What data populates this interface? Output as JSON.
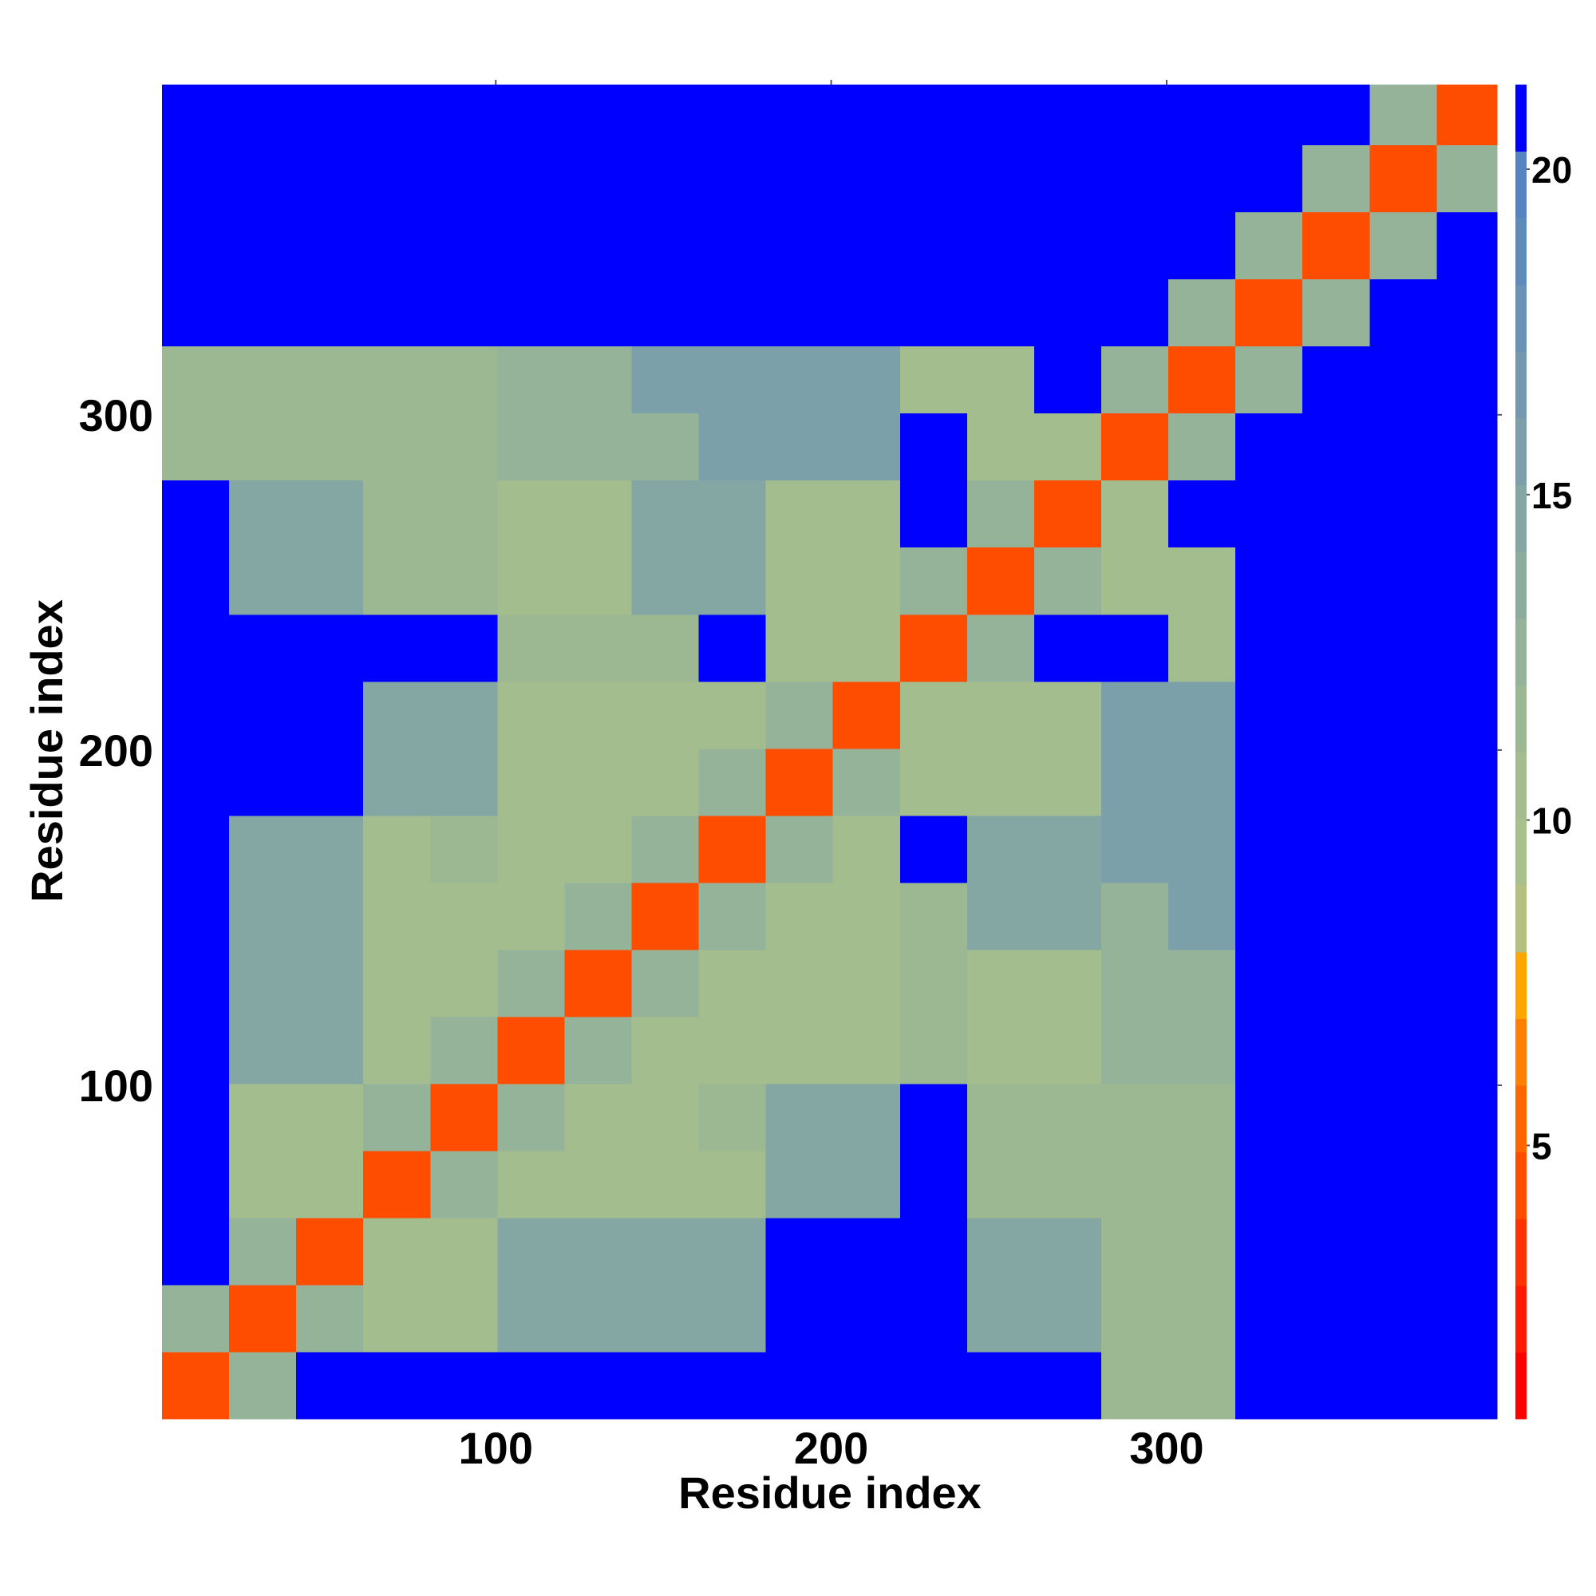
{
  "chart_data": {
    "type": "heatmap",
    "xlabel": "Residue index",
    "ylabel": "Residue index",
    "xbins": [
      0.5,
      20.5,
      40.5,
      60.5,
      80.5,
      100.5,
      120.5,
      140.5,
      160.5,
      180.5,
      200.5,
      220.5,
      240.5,
      260.5,
      280.5,
      300.5,
      320.5,
      340.5,
      360.5,
      380.5,
      398.5
    ],
    "ybins": [
      0.5,
      20.5,
      40.5,
      60.5,
      80.5,
      100.5,
      120.5,
      140.5,
      160.5,
      180.5,
      200.5,
      220.5,
      240.5,
      260.5,
      280.5,
      300.5,
      320.5,
      340.5,
      360.5,
      380.5,
      398.5
    ],
    "values": [
      [
        4,
        13,
        21,
        21,
        21,
        21,
        21,
        21,
        21,
        21,
        21,
        21,
        21,
        21,
        12,
        12,
        21,
        21,
        21,
        21
      ],
      [
        13,
        4,
        13,
        11,
        11,
        15,
        15,
        15,
        15,
        21,
        21,
        21,
        15,
        15,
        12,
        12,
        21,
        21,
        21,
        21
      ],
      [
        21,
        13,
        4,
        11,
        11,
        15,
        15,
        15,
        15,
        21,
        21,
        21,
        15,
        15,
        12,
        12,
        21,
        21,
        21,
        21
      ],
      [
        21,
        11,
        11,
        4,
        13,
        11,
        11,
        11,
        11,
        15,
        15,
        21,
        12,
        12,
        12,
        12,
        21,
        21,
        21,
        21
      ],
      [
        21,
        11,
        11,
        13,
        4,
        13,
        11,
        11,
        12,
        15,
        15,
        21,
        12,
        12,
        12,
        12,
        21,
        21,
        21,
        21
      ],
      [
        21,
        15,
        15,
        11,
        13,
        4,
        13,
        11,
        11,
        11,
        11,
        12,
        11,
        11,
        13,
        13,
        21,
        21,
        21,
        21
      ],
      [
        21,
        15,
        15,
        11,
        11,
        13,
        4,
        13,
        11,
        11,
        11,
        12,
        11,
        11,
        13,
        13,
        21,
        21,
        21,
        21
      ],
      [
        21,
        15,
        15,
        11,
        11,
        11,
        13,
        4,
        13,
        11,
        11,
        12,
        15,
        15,
        13,
        16,
        21,
        21,
        21,
        21
      ],
      [
        21,
        15,
        15,
        11,
        12,
        11,
        11,
        13,
        4,
        13,
        11,
        21,
        15,
        15,
        16,
        16,
        21,
        21,
        21,
        21
      ],
      [
        21,
        21,
        21,
        15,
        15,
        11,
        11,
        11,
        13,
        4,
        13,
        11,
        11,
        11,
        16,
        16,
        21,
        21,
        21,
        21
      ],
      [
        21,
        21,
        21,
        15,
        15,
        11,
        11,
        11,
        11,
        13,
        4,
        11,
        11,
        11,
        16,
        16,
        21,
        21,
        21,
        21
      ],
      [
        21,
        21,
        21,
        21,
        21,
        12,
        12,
        12,
        21,
        11,
        11,
        4,
        13,
        21,
        21,
        11,
        21,
        21,
        21,
        21
      ],
      [
        21,
        15,
        15,
        12,
        12,
        11,
        11,
        15,
        15,
        11,
        11,
        13,
        4,
        13,
        11,
        11,
        21,
        21,
        21,
        21
      ],
      [
        21,
        15,
        15,
        12,
        12,
        11,
        11,
        15,
        15,
        11,
        11,
        21,
        13,
        4,
        11,
        21,
        21,
        21,
        21,
        21
      ],
      [
        12,
        12,
        12,
        12,
        12,
        13,
        13,
        13,
        16,
        16,
        16,
        21,
        11,
        11,
        4,
        13,
        21,
        21,
        21,
        21
      ],
      [
        12,
        12,
        12,
        12,
        12,
        13,
        13,
        16,
        16,
        16,
        16,
        11,
        11,
        21,
        13,
        4,
        13,
        21,
        21,
        21
      ],
      [
        21,
        21,
        21,
        21,
        21,
        21,
        21,
        21,
        21,
        21,
        21,
        21,
        21,
        21,
        21,
        13,
        4,
        13,
        21,
        21
      ],
      [
        21,
        21,
        21,
        21,
        21,
        21,
        21,
        21,
        21,
        21,
        21,
        21,
        21,
        21,
        21,
        21,
        13,
        4,
        13,
        21
      ],
      [
        21,
        21,
        21,
        21,
        21,
        21,
        21,
        21,
        21,
        21,
        21,
        21,
        21,
        21,
        21,
        21,
        21,
        13,
        4,
        13
      ],
      [
        21,
        21,
        21,
        21,
        21,
        21,
        21,
        21,
        21,
        21,
        21,
        21,
        21,
        21,
        21,
        21,
        21,
        21,
        13,
        4
      ]
    ],
    "xlim": [
      0.5,
      398.5
    ],
    "ylim": [
      0.5,
      398.5
    ],
    "xticks": [
      100,
      200,
      300
    ],
    "yticks": [
      100,
      200,
      300
    ],
    "colorbar": {
      "clim": [
        0.8,
        21.3
      ],
      "ticks": [
        5,
        10,
        15,
        20
      ],
      "colors": [
        "#ff0000",
        "#ff1a00",
        "#ff3300",
        "#ff4d00",
        "#ff6600",
        "#ff8000",
        "#ffa500",
        "#b4c080",
        "#a8c08c",
        "#a3bd8f",
        "#9cb893",
        "#94b398",
        "#8cad9d",
        "#84a7a3",
        "#7ca0a9",
        "#7299b0",
        "#6992b6",
        "#5f8bbc",
        "#5684c2",
        "#0000ff"
      ]
    }
  }
}
